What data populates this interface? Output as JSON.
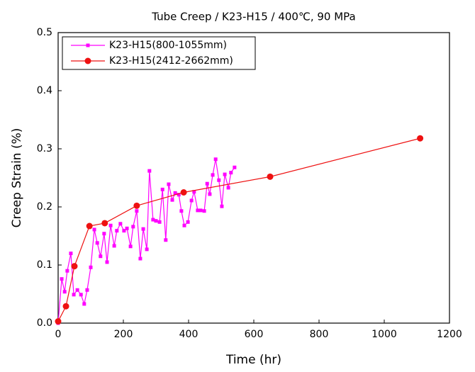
{
  "chart_data": {
    "type": "line",
    "title": "Tube Creep / K23-H15 / 400℃, 90 MPa",
    "x_label": "Time (hr)",
    "y_label": "Creep Strain (%)",
    "xlim": [
      0,
      1200
    ],
    "xticks": [
      0,
      200,
      400,
      600,
      800,
      1000,
      1200
    ],
    "ylim": [
      0,
      0.5
    ],
    "yticks": [
      {
        "value": 0,
        "label": "0.0"
      },
      0.1,
      0.2,
      0.3,
      0.4,
      0.5
    ],
    "legend": "upper-left",
    "series": [
      {
        "name": "K23-H15(800-1055mm)",
        "color": "#ff00ff",
        "marker": "square",
        "x": [
          0,
          11,
          20,
          28,
          39,
          48,
          59,
          70,
          80,
          89,
          100,
          111,
          120,
          130,
          141,
          150,
          161,
          172,
          180,
          191,
          202,
          211,
          222,
          230,
          241,
          252,
          261,
          272,
          280,
          291,
          300,
          311,
          320,
          330,
          339,
          350,
          359,
          370,
          378,
          387,
          398,
          409,
          417,
          428,
          437,
          448,
          457,
          465,
          474,
          483,
          493,
          502,
          511,
          522,
          530,
          541
        ],
        "values": [
          0,
          0.076,
          0.054,
          0.09,
          0.12,
          0.049,
          0.057,
          0.049,
          0.033,
          0.057,
          0.096,
          0.161,
          0.138,
          0.115,
          0.154,
          0.105,
          0.168,
          0.133,
          0.159,
          0.171,
          0.159,
          0.163,
          0.132,
          0.166,
          0.193,
          0.111,
          0.162,
          0.127,
          0.262,
          0.178,
          0.176,
          0.174,
          0.23,
          0.143,
          0.239,
          0.212,
          0.224,
          0.221,
          0.193,
          0.168,
          0.174,
          0.211,
          0.226,
          0.194,
          0.194,
          0.193,
          0.24,
          0.222,
          0.255,
          0.282,
          0.246,
          0.201,
          0.256,
          0.233,
          0.259,
          0.268
        ]
      },
      {
        "name": "K23-H15(2412-2662mm)",
        "color": "#ee1111",
        "marker": "circle",
        "x": [
          0,
          24,
          50,
          96,
          143,
          241,
          385,
          650,
          1110
        ],
        "values": [
          0.003,
          0.029,
          0.098,
          0.167,
          0.172,
          0.202,
          0.225,
          0.252,
          0.318
        ]
      }
    ]
  }
}
